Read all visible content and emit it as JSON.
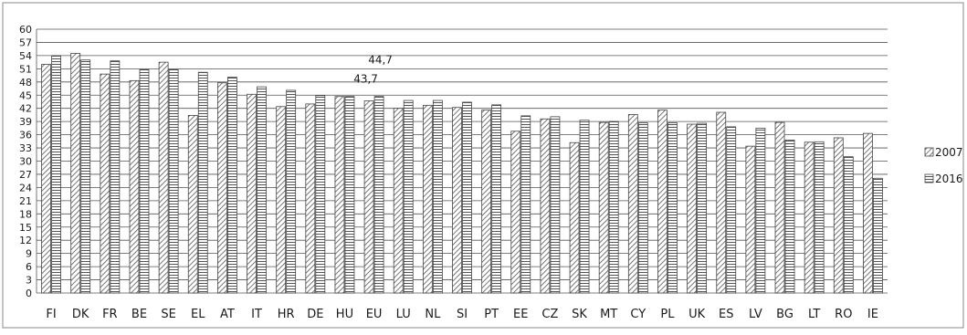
{
  "chart_data": {
    "type": "bar",
    "categories": [
      "FI",
      "DK",
      "FR",
      "BE",
      "SE",
      "EL",
      "AT",
      "IT",
      "HR",
      "DE",
      "HU",
      "EU",
      "LU",
      "NL",
      "SI",
      "PT",
      "EE",
      "CZ",
      "SK",
      "MT",
      "CY",
      "PL",
      "UK",
      "ES",
      "LV",
      "BG",
      "LT",
      "RO",
      "IE"
    ],
    "series": [
      {
        "name": "2007",
        "pattern": "diagonal-hatch",
        "values": [
          52.0,
          54.5,
          49.8,
          48.3,
          52.5,
          40.4,
          47.8,
          45.2,
          42.4,
          43.0,
          44.7,
          43.7,
          42.0,
          42.7,
          42.2,
          41.6,
          36.8,
          39.6,
          34.2,
          38.8,
          40.6,
          41.6,
          38.4,
          41.1,
          33.4,
          38.8,
          34.3,
          35.3,
          36.3
        ]
      },
      {
        "name": "2016",
        "pattern": "horizontal-hatch",
        "values": [
          54.0,
          53.0,
          52.8,
          50.8,
          50.8,
          50.2,
          49.1,
          46.9,
          46.1,
          44.9,
          44.7,
          44.7,
          43.8,
          43.8,
          43.4,
          42.8,
          40.3,
          40.1,
          39.3,
          39.0,
          38.7,
          38.7,
          38.6,
          37.8,
          37.5,
          34.8,
          34.4,
          31.0,
          26.1
        ]
      }
    ],
    "annotations": [
      {
        "category": "EU",
        "series": "2016",
        "text": "44,7"
      },
      {
        "category": "EU",
        "series": "2007",
        "text": "43,7"
      }
    ],
    "yticks": [
      "0",
      "3",
      "6",
      "9",
      "12",
      "15",
      "18",
      "21",
      "24",
      "27",
      "30",
      "33",
      "36",
      "39",
      "42",
      "45",
      "48",
      "51",
      "54",
      "57",
      "60"
    ],
    "ylim": [
      0,
      60
    ],
    "grid": true,
    "legend_position": "right",
    "title": "",
    "xlabel": "",
    "ylabel": "",
    "colors": {
      "bar_stroke": "#444444",
      "hatch": "#555555",
      "bar_fill": "#ffffff",
      "grid": "#555555",
      "frame": "#888888"
    }
  }
}
